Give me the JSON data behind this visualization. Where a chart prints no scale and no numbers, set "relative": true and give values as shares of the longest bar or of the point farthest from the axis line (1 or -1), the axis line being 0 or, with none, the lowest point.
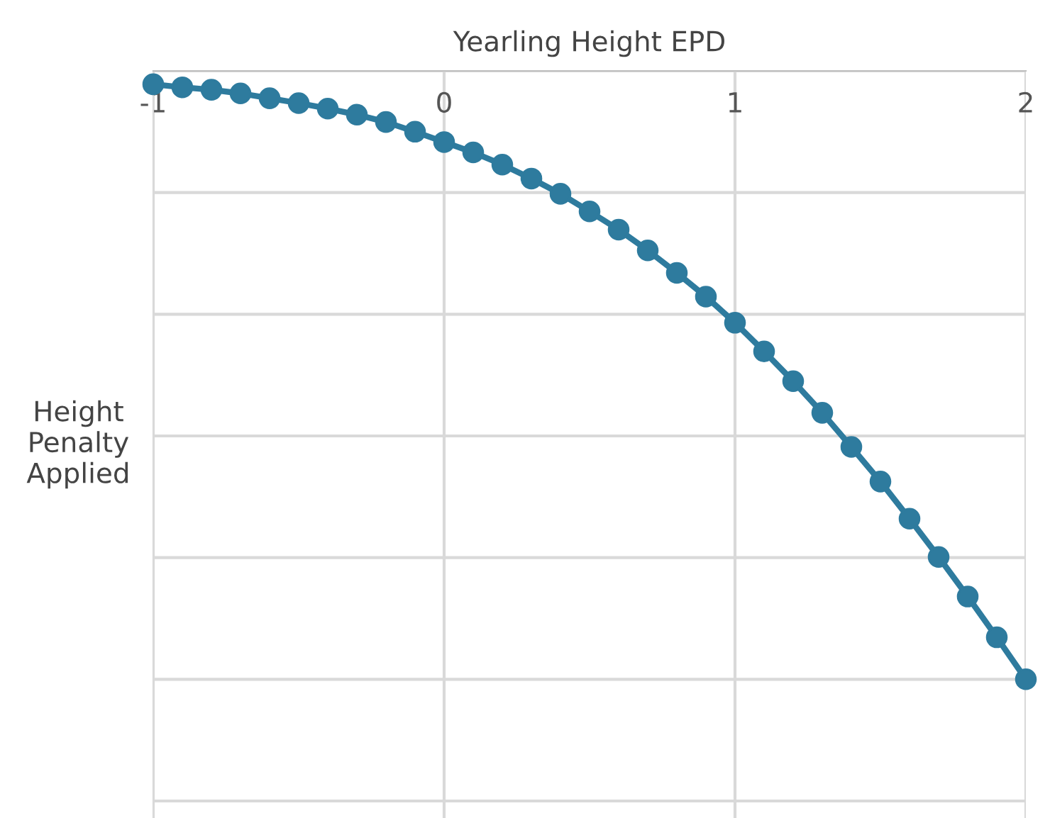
{
  "chart_data": {
    "type": "line",
    "xlabel": "Yearling Height EPD",
    "ylabel": "Height\nPenalty\nApplied",
    "relative": true,
    "x": [
      -1,
      -0.9,
      -0.8,
      -0.7,
      -0.6,
      -0.5,
      -0.4,
      -0.3,
      -0.2,
      -0.1,
      0,
      0.1,
      0.2,
      0.3,
      0.4,
      0.5,
      0.6,
      0.7,
      0.8,
      0.9,
      1,
      1.1,
      1.2,
      1.3,
      1.4,
      1.5,
      1.6,
      1.7,
      1.8,
      1.9,
      2
    ],
    "series": [
      {
        "color": "#2e7b9e",
        "values": [
          -0.022,
          -0.027,
          -0.031,
          -0.037,
          -0.045,
          -0.053,
          -0.062,
          -0.072,
          -0.084,
          -0.1,
          -0.117,
          -0.134,
          -0.154,
          -0.177,
          -0.202,
          -0.231,
          -0.261,
          -0.295,
          -0.332,
          -0.371,
          -0.414,
          -0.461,
          -0.51,
          -0.562,
          -0.618,
          -0.675,
          -0.736,
          -0.799,
          -0.864,
          -0.931,
          -1
        ]
      }
    ],
    "xlim": [
      -1,
      2
    ],
    "xticks": [
      -1,
      0,
      1,
      2
    ],
    "grid": true,
    "marker": "circle",
    "line_style": "solid"
  }
}
